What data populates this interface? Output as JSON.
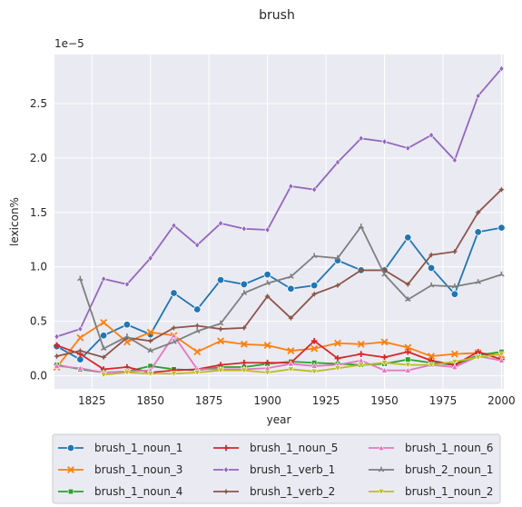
{
  "chart_data": {
    "type": "line",
    "title": "brush",
    "xlabel": "year",
    "ylabel": "lexicon%",
    "y_offset_text": "1e−5",
    "xlim": [
      1809,
      2001
    ],
    "ylim": [
      -0.12,
      2.95
    ],
    "x_ticks": [
      1825,
      1850,
      1875,
      1900,
      1925,
      1950,
      1975,
      2000
    ],
    "x_tick_labels": [
      "1825",
      "1850",
      "1875",
      "1900",
      "1925",
      "1950",
      "1975",
      "2000"
    ],
    "y_ticks": [
      0.0,
      0.5,
      1.0,
      1.5,
      2.0,
      2.5
    ],
    "y_tick_labels": [
      "0.0",
      "0.5",
      "1.0",
      "1.5",
      "2.0",
      "2.5"
    ],
    "grid": true,
    "legend_position": "bottom-center, below plot, 3 columns",
    "background": "#eaeaf2",
    "x": [
      1810,
      1820,
      1830,
      1840,
      1850,
      1860,
      1870,
      1880,
      1890,
      1900,
      1910,
      1920,
      1930,
      1940,
      1950,
      1960,
      1970,
      1980,
      1990,
      2000
    ],
    "series": [
      {
        "name": "brush_1_noun_1",
        "color": "#1f77b4",
        "marker": "circle",
        "values": [
          0.27,
          0.15,
          0.37,
          0.47,
          0.38,
          0.76,
          0.61,
          0.88,
          0.84,
          0.93,
          0.8,
          0.83,
          1.06,
          0.97,
          0.97,
          1.27,
          0.99,
          0.75,
          1.32,
          1.36
        ]
      },
      {
        "name": "brush_1_noun_3",
        "color": "#ff7f0e",
        "marker": "x",
        "values": [
          0.08,
          0.35,
          0.49,
          0.31,
          0.4,
          0.37,
          0.22,
          0.32,
          0.29,
          0.28,
          0.23,
          0.25,
          0.3,
          0.29,
          0.31,
          0.26,
          0.18,
          0.2,
          0.21,
          0.19
        ]
      },
      {
        "name": "brush_1_noun_4",
        "color": "#2ca02c",
        "marker": "square",
        "values": [
          0.1,
          0.06,
          0.03,
          0.04,
          0.09,
          0.06,
          0.05,
          0.08,
          0.08,
          0.11,
          0.13,
          0.12,
          0.11,
          0.1,
          0.11,
          0.15,
          0.12,
          0.1,
          0.19,
          0.22
        ]
      },
      {
        "name": "brush_1_noun_5",
        "color": "#d62728",
        "marker": "plus",
        "values": [
          0.28,
          0.2,
          0.06,
          0.08,
          0.03,
          0.05,
          0.06,
          0.1,
          0.12,
          0.12,
          0.12,
          0.32,
          0.16,
          0.2,
          0.17,
          0.22,
          0.14,
          0.1,
          0.22,
          0.15
        ]
      },
      {
        "name": "brush_1_verb_1",
        "color": "#9467bd",
        "marker": "diamond",
        "values": [
          0.36,
          0.43,
          0.89,
          0.84,
          1.08,
          1.38,
          1.2,
          1.4,
          1.35,
          1.34,
          1.74,
          1.71,
          1.96,
          2.18,
          2.15,
          2.09,
          2.21,
          1.98,
          2.57,
          2.82
        ]
      },
      {
        "name": "brush_1_verb_2",
        "color": "#8c564b",
        "marker": "star",
        "values": [
          0.18,
          0.23,
          0.17,
          0.35,
          0.32,
          0.44,
          0.46,
          0.43,
          0.44,
          0.73,
          0.53,
          0.75,
          0.83,
          0.97,
          0.97,
          0.84,
          1.11,
          1.14,
          1.5,
          1.71
        ]
      },
      {
        "name": "brush_1_noun_6",
        "color": "#e377c2",
        "marker": "triangle-up",
        "values": [
          0.09,
          0.07,
          0.03,
          0.04,
          0.05,
          0.37,
          0.06,
          0.06,
          0.06,
          0.07,
          0.11,
          0.09,
          0.1,
          0.14,
          0.05,
          0.05,
          0.1,
          0.08,
          0.18,
          0.14
        ]
      },
      {
        "name": "brush_2_noun_1",
        "color": "#7f7f7f",
        "marker": "tri",
        "values": [
          null,
          0.89,
          0.25,
          0.36,
          0.23,
          0.31,
          0.41,
          0.48,
          0.76,
          0.85,
          0.91,
          1.1,
          1.08,
          1.37,
          0.93,
          0.7,
          0.83,
          0.82,
          0.86,
          0.93
        ]
      },
      {
        "name": "brush_1_noun_2",
        "color": "#bcbd22",
        "marker": "triangle-down",
        "values": [
          null,
          null,
          0.01,
          0.03,
          0.02,
          0.02,
          0.03,
          0.05,
          0.05,
          0.03,
          0.06,
          0.04,
          0.07,
          0.1,
          0.12,
          0.1,
          0.1,
          0.13,
          0.17,
          0.2
        ]
      }
    ]
  }
}
